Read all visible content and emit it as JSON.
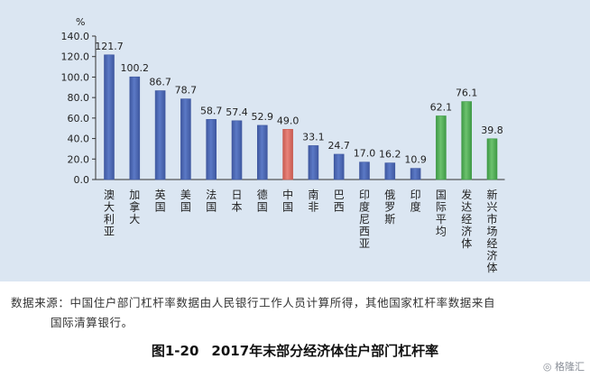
{
  "chart_data": {
    "type": "bar",
    "y_unit": "%",
    "ylim": [
      0,
      140
    ],
    "y_ticks": [
      "0.0",
      "20.0",
      "40.0",
      "60.0",
      "80.0",
      "100.0",
      "120.0",
      "140.0"
    ],
    "categories": [
      "澳大利亚",
      "加拿大",
      "英国",
      "美国",
      "法国",
      "日本",
      "德国",
      "中国",
      "南非",
      "巴西",
      "印度尼西亚",
      "俄罗斯",
      "印度",
      "国际平均",
      "发达经济体",
      "新兴市场经济体"
    ],
    "values": [
      121.7,
      100.2,
      86.7,
      78.7,
      58.7,
      57.4,
      52.9,
      49.0,
      33.1,
      24.7,
      17.0,
      16.2,
      10.9,
      62.1,
      76.1,
      39.8
    ],
    "value_labels": [
      "121.7",
      "100.2",
      "86.7",
      "78.7",
      "58.7",
      "57.4",
      "52.9",
      "49.0",
      "33.1",
      "24.7",
      "17.0",
      "16.2",
      "10.9",
      "62.1",
      "76.1",
      "39.8"
    ],
    "bar_groups": [
      "blue",
      "blue",
      "blue",
      "blue",
      "blue",
      "blue",
      "blue",
      "red",
      "blue",
      "blue",
      "blue",
      "blue",
      "blue",
      "green",
      "green",
      "green"
    ],
    "colors": {
      "blue": "#5b79c6",
      "blue_dark": "#3f58a0",
      "red": "#e8837a",
      "red_dark": "#c85a50",
      "green": "#6cc26e",
      "green_dark": "#3f9a46",
      "panel": "#dbe6f2"
    },
    "grid": false
  },
  "source_note": {
    "line1": "数据来源：中国住户部门杠杆率数据由人民银行工作人员计算所得，其他国家杠杆率数据来自",
    "line2": "国际清算银行。"
  },
  "caption": {
    "number": "图1-20",
    "title": "2017年末部分经济体住户部门杠杆率"
  },
  "watermark": "格隆汇"
}
